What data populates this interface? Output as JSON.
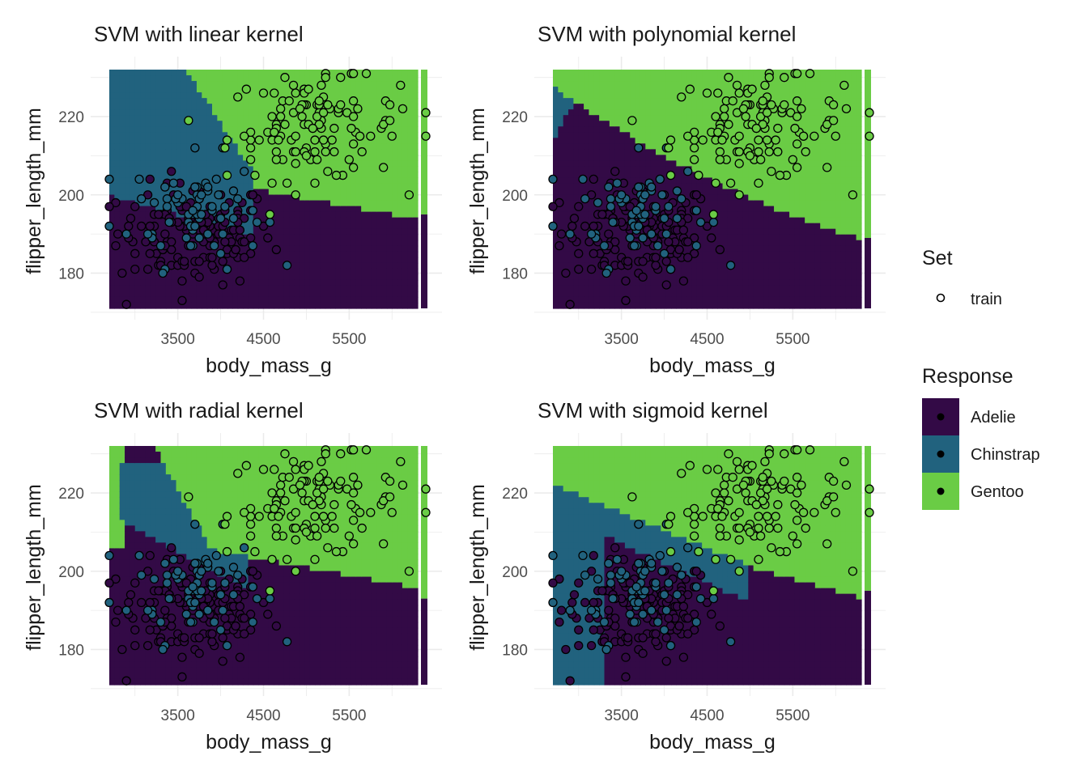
{
  "colors": {
    "Adelie": "#330a46",
    "Chinstrap": "#21627e",
    "Gentoo": "#6acc45",
    "grid": "#ebebeb",
    "point_stroke": "#000000"
  },
  "legend": {
    "set_title": "Set",
    "set_entries": [
      "train"
    ],
    "response_title": "Response",
    "response_entries": [
      {
        "label": "Adelie",
        "color": "#330a46"
      },
      {
        "label": "Chinstrap",
        "color": "#21627e"
      },
      {
        "label": "Gentoo",
        "color": "#6acc45"
      }
    ]
  },
  "chart_data": [
    {
      "type": "scatter",
      "title": "SVM with  linear kernel",
      "xlabel": "body_mass_g",
      "ylabel": "flipper_length_mm",
      "xticks": [
        3500,
        4500,
        5500
      ],
      "yticks": [
        180,
        200,
        220
      ],
      "xlim": [
        2700,
        6300
      ],
      "ylim": [
        171,
        232
      ],
      "grid": true,
      "boundary_type": "linear",
      "region_classes": [
        "Adelie",
        "Chinstrap",
        "Gentoo"
      ],
      "region_edge_strip": {
        "x": 6250,
        "split_y": 195,
        "below": "Adelie",
        "above": "Gentoo"
      },
      "series": [
        {
          "name": "train",
          "marker": "circle-open",
          "shape_legend": true
        }
      ]
    },
    {
      "type": "scatter",
      "title": "SVM with  polynomial kernel",
      "xlabel": "body_mass_g",
      "ylabel": "flipper_length_mm",
      "xticks": [
        3500,
        4500,
        5500
      ],
      "yticks": [
        180,
        200,
        220
      ],
      "xlim": [
        2700,
        6300
      ],
      "ylim": [
        171,
        232
      ],
      "grid": true,
      "boundary_type": "polynomial",
      "region_classes": [
        "Adelie",
        "Chinstrap",
        "Gentoo"
      ],
      "region_edge_strip": {
        "x": 6250,
        "split_y": 189,
        "below": "Adelie",
        "above": "Gentoo"
      },
      "series": [
        {
          "name": "train",
          "marker": "circle-open",
          "shape_legend": true
        }
      ]
    },
    {
      "type": "scatter",
      "title": "SVM with  radial kernel",
      "xlabel": "body_mass_g",
      "ylabel": "flipper_length_mm",
      "xticks": [
        3500,
        4500,
        5500
      ],
      "yticks": [
        180,
        200,
        220
      ],
      "xlim": [
        2700,
        6300
      ],
      "ylim": [
        171,
        232
      ],
      "grid": true,
      "boundary_type": "radial",
      "region_classes": [
        "Adelie",
        "Chinstrap",
        "Gentoo"
      ],
      "region_edge_strip": {
        "x": 6250,
        "split_y": 193,
        "below": "Adelie",
        "above": "Gentoo"
      },
      "series": [
        {
          "name": "train",
          "marker": "circle-open",
          "shape_legend": true
        }
      ]
    },
    {
      "type": "scatter",
      "title": "SVM with  sigmoid kernel",
      "xlabel": "body_mass_g",
      "ylabel": "flipper_length_mm",
      "xticks": [
        3500,
        4500,
        5500
      ],
      "yticks": [
        180,
        200,
        220
      ],
      "xlim": [
        2700,
        6300
      ],
      "ylim": [
        171,
        232
      ],
      "grid": true,
      "boundary_type": "sigmoid",
      "region_classes": [
        "Adelie",
        "Chinstrap",
        "Gentoo"
      ],
      "region_edge_strip": {
        "x": 6250,
        "split_y": 195,
        "below": "Adelie",
        "above": "Gentoo"
      },
      "series": [
        {
          "name": "train",
          "marker": "circle-open",
          "shape_legend": true
        }
      ]
    }
  ]
}
